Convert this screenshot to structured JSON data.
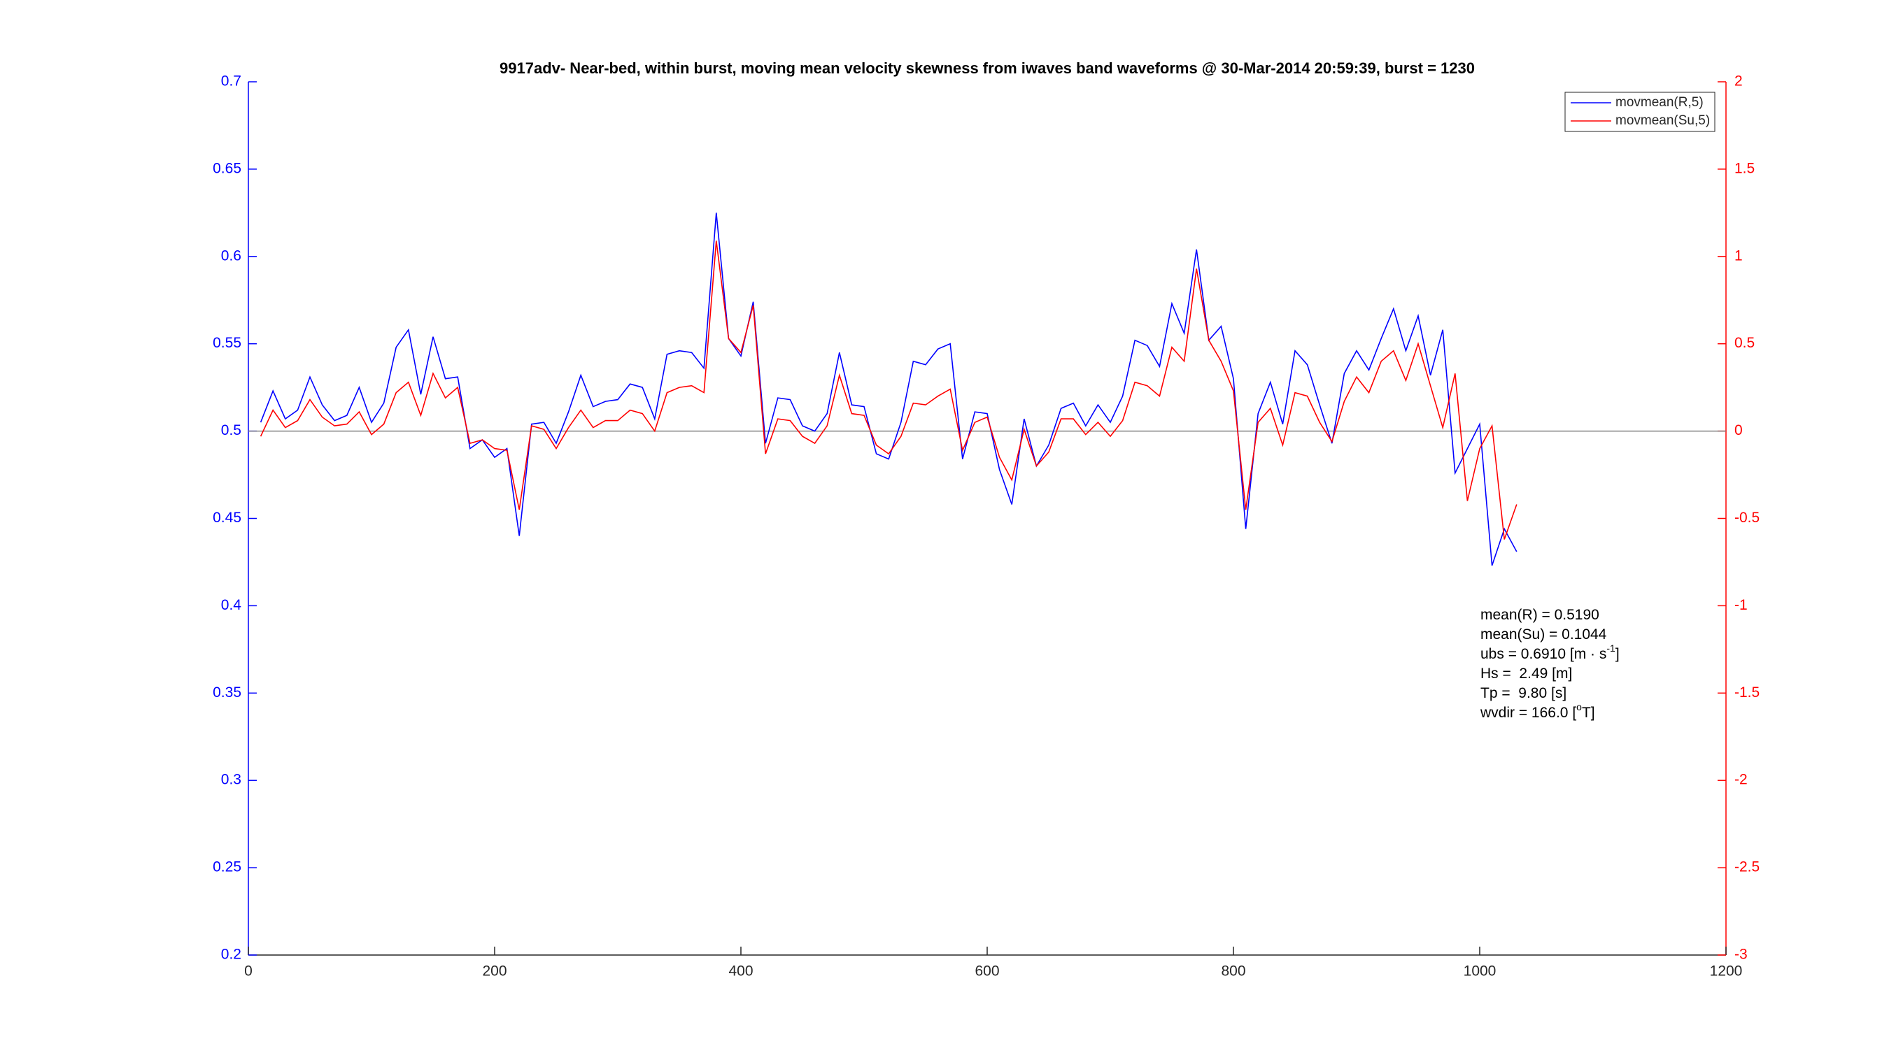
{
  "chart_data": {
    "type": "line",
    "title": "9917adv- Near-bed, within burst, moving mean velocity skewness from iwaves band waveforms @ 30-Mar-2014 20:59:39, burst = 1230",
    "x": [
      10,
      20,
      30,
      40,
      50,
      60,
      70,
      80,
      90,
      100,
      110,
      120,
      130,
      140,
      150,
      160,
      170,
      180,
      190,
      200,
      210,
      220,
      230,
      240,
      250,
      260,
      270,
      280,
      290,
      300,
      310,
      320,
      330,
      340,
      350,
      360,
      370,
      380,
      390,
      400,
      410,
      420,
      430,
      440,
      450,
      460,
      470,
      480,
      490,
      500,
      510,
      520,
      530,
      540,
      550,
      560,
      570,
      580,
      590,
      600,
      610,
      620,
      630,
      640,
      650,
      660,
      670,
      680,
      690,
      700,
      710,
      720,
      730,
      740,
      750,
      760,
      770,
      780,
      790,
      800,
      810,
      820,
      830,
      840,
      850,
      860,
      870,
      880,
      890,
      900,
      910,
      920,
      930,
      940,
      950,
      960,
      970,
      980,
      990,
      1000,
      1010,
      1020,
      1030
    ],
    "series": [
      {
        "name": "movmean(R,5)",
        "color": "#0000ff",
        "axis": "y",
        "values": [
          0.505,
          0.523,
          0.507,
          0.512,
          0.531,
          0.515,
          0.506,
          0.509,
          0.525,
          0.505,
          0.516,
          0.548,
          0.558,
          0.521,
          0.554,
          0.53,
          0.531,
          0.49,
          0.495,
          0.485,
          0.49,
          0.44,
          0.504,
          0.505,
          0.493,
          0.511,
          0.532,
          0.514,
          0.517,
          0.518,
          0.527,
          0.525,
          0.507,
          0.544,
          0.546,
          0.545,
          0.536,
          0.625,
          0.553,
          0.543,
          0.574,
          0.493,
          0.519,
          0.518,
          0.503,
          0.5,
          0.51,
          0.545,
          0.515,
          0.514,
          0.487,
          0.484,
          0.505,
          0.54,
          0.538,
          0.547,
          0.55,
          0.484,
          0.511,
          0.51,
          0.478,
          0.458,
          0.507,
          0.48,
          0.492,
          0.513,
          0.516,
          0.503,
          0.515,
          0.505,
          0.52,
          0.552,
          0.549,
          0.537,
          0.573,
          0.556,
          0.604,
          0.552,
          0.56,
          0.53,
          0.444,
          0.51,
          0.528,
          0.504,
          0.546,
          0.538,
          0.515,
          0.493,
          0.533,
          0.546,
          0.535,
          0.553,
          0.57,
          0.546,
          0.566,
          0.532,
          0.558,
          0.476,
          0.49,
          0.504,
          0.423,
          0.444,
          0.431
        ]
      },
      {
        "name": "movmean(Su,5)",
        "color": "#ff0000",
        "axis": "y2",
        "values": [
          -0.03,
          0.12,
          0.02,
          0.06,
          0.18,
          0.08,
          0.03,
          0.04,
          0.11,
          -0.02,
          0.04,
          0.22,
          0.28,
          0.09,
          0.33,
          0.19,
          0.25,
          -0.07,
          -0.05,
          -0.1,
          -0.11,
          -0.45,
          0.03,
          0.01,
          -0.1,
          0.02,
          0.12,
          0.02,
          0.06,
          0.06,
          0.12,
          0.1,
          0.0,
          0.22,
          0.25,
          0.26,
          0.22,
          1.09,
          0.53,
          0.45,
          0.72,
          -0.13,
          0.07,
          0.06,
          -0.03,
          -0.07,
          0.03,
          0.32,
          0.1,
          0.09,
          -0.08,
          -0.13,
          -0.03,
          0.16,
          0.15,
          0.2,
          0.24,
          -0.11,
          0.05,
          0.08,
          -0.15,
          -0.28,
          0.01,
          -0.2,
          -0.12,
          0.07,
          0.07,
          -0.02,
          0.05,
          -0.03,
          0.06,
          0.28,
          0.26,
          0.2,
          0.48,
          0.4,
          0.93,
          0.52,
          0.4,
          0.23,
          -0.45,
          0.05,
          0.13,
          -0.08,
          0.22,
          0.2,
          0.05,
          -0.06,
          0.17,
          0.31,
          0.22,
          0.4,
          0.46,
          0.29,
          0.5,
          0.26,
          0.02,
          0.33,
          -0.4,
          -0.1,
          0.03,
          -0.62,
          -0.42
        ]
      }
    ],
    "xlim": [
      0,
      1200
    ],
    "xticks": [
      0,
      200,
      400,
      600,
      800,
      1000,
      1200
    ],
    "ylim": [
      0.2,
      0.7
    ],
    "yticks": [
      0.2,
      0.25,
      0.3,
      0.35,
      0.4,
      0.45,
      0.5,
      0.55,
      0.6,
      0.65,
      0.7
    ],
    "y2lim": [
      -3,
      2
    ],
    "y2ticks": [
      -3,
      -2.5,
      -2,
      -1.5,
      -1,
      -0.5,
      0,
      0.5,
      1,
      1.5,
      2
    ],
    "reference_line": {
      "axis": "y2",
      "value": 0
    },
    "legend": "top-right",
    "annotations": [
      [
        "mean(R) = 0.5190"
      ],
      [
        "mean(Su) = 0.1044"
      ],
      [
        "ubs = 0.6910 [m · s",
        "-1",
        "]"
      ],
      [
        "Hs =  2.49 [m]"
      ],
      [
        "Tp =  9.80 [s]"
      ],
      [
        "wvdir = 166.0 [",
        "o",
        "T]"
      ]
    ]
  }
}
